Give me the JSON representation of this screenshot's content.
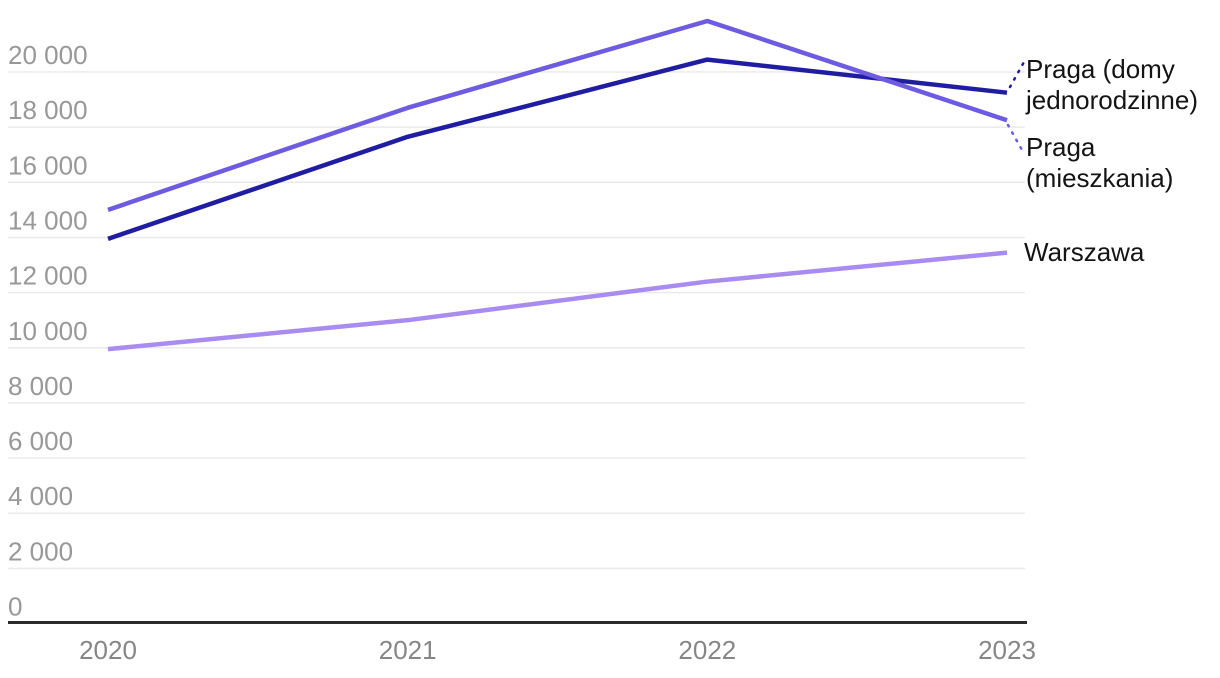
{
  "chart": {
    "background": "#ffffff",
    "axis_color": "#2b2b2b",
    "grid_color": "#eaeaea",
    "ytick_label_color": "#989898",
    "xtick_label_color": "#868686",
    "series_label_color": "#141414"
  },
  "chart_data": {
    "type": "line",
    "title": "",
    "x": [
      2020,
      2021,
      2022,
      2023
    ],
    "x_labels": [
      "2020",
      "2021",
      "2022",
      "2023"
    ],
    "series": [
      {
        "name": "Praga (domy jednorodzinne)",
        "label_text": "Praga (domy\njednorodzinne)",
        "color": "#201da3",
        "values": [
          13950,
          17650,
          20450,
          19250
        ],
        "leader": "dotted"
      },
      {
        "name": "Praga (mieszkania)",
        "label_text": "Praga\n(mieszkania)",
        "color": "#6d5be1",
        "values": [
          15000,
          18700,
          21850,
          18250
        ],
        "leader": "dotted"
      },
      {
        "name": "Warszawa",
        "label_text": "Warszawa",
        "color": "#a98cf2",
        "values": [
          9950,
          11000,
          12400,
          13450
        ],
        "leader": "none"
      }
    ],
    "ylim": [
      0,
      22000
    ],
    "ytick_step": 2000,
    "ytick_labels": [
      "0",
      "2 000",
      "4 000",
      "6 000",
      "8 000",
      "10 000",
      "12 000",
      "14 000",
      "16 000",
      "18 000",
      "20 000"
    ],
    "grid": true,
    "legend_position": "right-edge-direct-labels"
  }
}
